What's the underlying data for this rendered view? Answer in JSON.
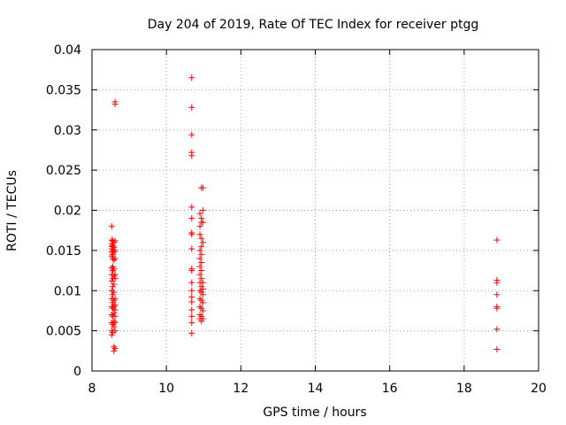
{
  "chart_data": {
    "type": "scatter",
    "title": "Day 204 of 2019, Rate Of TEC Index for receiver ptgg",
    "xlabel": "GPS time / hours",
    "ylabel": "ROTI / TECUs",
    "xlim": [
      8,
      20
    ],
    "ylim": [
      0,
      0.04
    ],
    "xticks": [
      "8",
      "10",
      "12",
      "14",
      "16",
      "18",
      "20"
    ],
    "yticks": [
      "0",
      "0.005",
      "0.01",
      "0.015",
      "0.02",
      "0.025",
      "0.03",
      "0.035",
      "0.04"
    ],
    "grid": true,
    "marker": "+",
    "color": "#ff0000",
    "series": [
      {
        "points": [
          [
            8.53,
            0.018
          ],
          [
            8.53,
            0.0163
          ],
          [
            8.53,
            0.0158
          ],
          [
            8.53,
            0.0155
          ],
          [
            8.53,
            0.0152
          ],
          [
            8.53,
            0.0148
          ],
          [
            8.53,
            0.0143
          ],
          [
            8.53,
            0.0128
          ],
          [
            8.53,
            0.012
          ],
          [
            8.53,
            0.0112
          ],
          [
            8.53,
            0.01
          ],
          [
            8.53,
            0.009
          ],
          [
            8.53,
            0.008
          ],
          [
            8.53,
            0.007
          ],
          [
            8.53,
            0.006
          ],
          [
            8.53,
            0.005
          ],
          [
            8.53,
            0.0045
          ],
          [
            8.56,
            0.0162
          ],
          [
            8.56,
            0.0156
          ],
          [
            8.56,
            0.015
          ],
          [
            8.56,
            0.0145
          ],
          [
            8.56,
            0.014
          ],
          [
            8.56,
            0.013
          ],
          [
            8.56,
            0.0125
          ],
          [
            8.56,
            0.0115
          ],
          [
            8.56,
            0.0105
          ],
          [
            8.56,
            0.0095
          ],
          [
            8.56,
            0.0085
          ],
          [
            8.56,
            0.0078
          ],
          [
            8.56,
            0.0068
          ],
          [
            8.56,
            0.0058
          ],
          [
            8.56,
            0.0048
          ],
          [
            8.59,
            0.016
          ],
          [
            8.59,
            0.0154
          ],
          [
            8.59,
            0.0148
          ],
          [
            8.59,
            0.0138
          ],
          [
            8.59,
            0.0127
          ],
          [
            8.59,
            0.0118
          ],
          [
            8.59,
            0.0108
          ],
          [
            8.59,
            0.0098
          ],
          [
            8.59,
            0.0088
          ],
          [
            8.59,
            0.008
          ],
          [
            8.59,
            0.0072
          ],
          [
            8.59,
            0.0062
          ],
          [
            8.59,
            0.0055
          ],
          [
            8.59,
            0.003
          ],
          [
            8.59,
            0.0025
          ],
          [
            8.62,
            0.0335
          ],
          [
            8.62,
            0.0332
          ],
          [
            8.62,
            0.0162
          ],
          [
            8.62,
            0.015
          ],
          [
            8.62,
            0.014
          ],
          [
            8.62,
            0.012
          ],
          [
            8.62,
            0.0115
          ],
          [
            8.62,
            0.009
          ],
          [
            8.62,
            0.0082
          ],
          [
            8.62,
            0.0076
          ],
          [
            8.62,
            0.0068
          ],
          [
            8.62,
            0.006
          ],
          [
            8.62,
            0.005
          ],
          [
            8.62,
            0.0028
          ],
          [
            10.68,
            0.0365
          ],
          [
            10.68,
            0.0328
          ],
          [
            10.68,
            0.0294
          ],
          [
            10.68,
            0.0272
          ],
          [
            10.68,
            0.0268
          ],
          [
            10.68,
            0.0204
          ],
          [
            10.68,
            0.019
          ],
          [
            10.68,
            0.0172
          ],
          [
            10.68,
            0.017
          ],
          [
            10.68,
            0.0152
          ],
          [
            10.68,
            0.0127
          ],
          [
            10.68,
            0.0125
          ],
          [
            10.68,
            0.011
          ],
          [
            10.68,
            0.01
          ],
          [
            10.68,
            0.0092
          ],
          [
            10.68,
            0.0086
          ],
          [
            10.68,
            0.0076
          ],
          [
            10.68,
            0.0068
          ],
          [
            10.68,
            0.006
          ],
          [
            10.68,
            0.0047
          ],
          [
            10.9,
            0.0196
          ],
          [
            10.9,
            0.018
          ],
          [
            10.9,
            0.017
          ],
          [
            10.9,
            0.015
          ],
          [
            10.9,
            0.014
          ],
          [
            10.9,
            0.013
          ],
          [
            10.9,
            0.012
          ],
          [
            10.9,
            0.011
          ],
          [
            10.9,
            0.01
          ],
          [
            10.9,
            0.009
          ],
          [
            10.9,
            0.008
          ],
          [
            10.9,
            0.007
          ],
          [
            10.9,
            0.0065
          ],
          [
            10.94,
            0.0228
          ],
          [
            10.94,
            0.019
          ],
          [
            10.94,
            0.0185
          ],
          [
            10.94,
            0.0165
          ],
          [
            10.94,
            0.0155
          ],
          [
            10.94,
            0.0145
          ],
          [
            10.94,
            0.0135
          ],
          [
            10.94,
            0.0125
          ],
          [
            10.94,
            0.0115
          ],
          [
            10.94,
            0.0105
          ],
          [
            10.94,
            0.0098
          ],
          [
            10.94,
            0.0088
          ],
          [
            10.94,
            0.0078
          ],
          [
            10.94,
            0.0068
          ],
          [
            10.94,
            0.0062
          ],
          [
            10.98,
            0.0228
          ],
          [
            10.98,
            0.02
          ],
          [
            10.98,
            0.0185
          ],
          [
            10.98,
            0.016
          ],
          [
            10.98,
            0.011
          ],
          [
            10.98,
            0.0102
          ],
          [
            10.98,
            0.0095
          ],
          [
            10.98,
            0.0085
          ],
          [
            10.98,
            0.0075
          ],
          [
            10.98,
            0.0065
          ],
          [
            18.88,
            0.0163
          ],
          [
            18.88,
            0.0113
          ],
          [
            18.88,
            0.011
          ],
          [
            18.88,
            0.0095
          ],
          [
            18.88,
            0.008
          ],
          [
            18.88,
            0.0078
          ],
          [
            18.88,
            0.0052
          ],
          [
            18.88,
            0.0027
          ]
        ]
      }
    ]
  }
}
